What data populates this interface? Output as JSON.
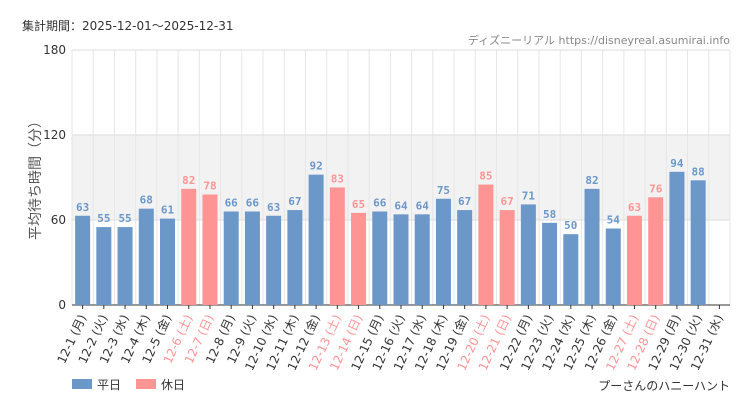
{
  "chart_data": {
    "type": "bar",
    "period": "集計期間：2025-12-01～2025-12-31",
    "source": "ディズニーリアル https://disneyreal.asumirai.info",
    "y_label": "平均待ち時間（分）",
    "attraction": "プーさんのハニーハント",
    "categories": [
      "12-1 (月)",
      "12-2 (火)",
      "12-3 (水)",
      "12-4 (木)",
      "12-5 (金)",
      "12-6 (土)",
      "12-7 (日)",
      "12-8 (月)",
      "12-9 (火)",
      "12-10 (水)",
      "12-11 (木)",
      "12-12 (金)",
      "12-13 (土)",
      "12-14 (日)",
      "12-15 (月)",
      "12-16 (火)",
      "12-17 (水)",
      "12-18 (木)",
      "12-19 (金)",
      "12-20 (土)",
      "12-21 (日)",
      "12-22 (月)",
      "12-23 (火)",
      "12-24 (水)",
      "12-25 (木)",
      "12-26 (金)",
      "12-27 (土)",
      "12-28 (日)",
      "12-29 (月)",
      "12-30 (火)",
      "12-31 (水)"
    ],
    "series": [
      {
        "name": "平日",
        "color": "#6b97c9",
        "values": [
          63,
          55,
          55,
          68,
          61,
          null,
          null,
          66,
          66,
          63,
          67,
          92,
          null,
          null,
          66,
          64,
          64,
          75,
          67,
          null,
          null,
          71,
          58,
          50,
          82,
          54,
          null,
          null,
          94,
          88,
          null
        ]
      },
      {
        "name": "休日",
        "color": "#ff9494",
        "values": [
          null,
          null,
          null,
          null,
          null,
          82,
          78,
          null,
          null,
          null,
          null,
          null,
          83,
          65,
          null,
          null,
          null,
          null,
          null,
          85,
          67,
          null,
          null,
          null,
          null,
          null,
          63,
          76,
          null,
          null,
          null
        ]
      }
    ],
    "ylim": [
      0,
      180
    ],
    "yticks": [
      0,
      60,
      120,
      180
    ],
    "highlight_band": [
      60,
      120
    ],
    "grid": true
  }
}
